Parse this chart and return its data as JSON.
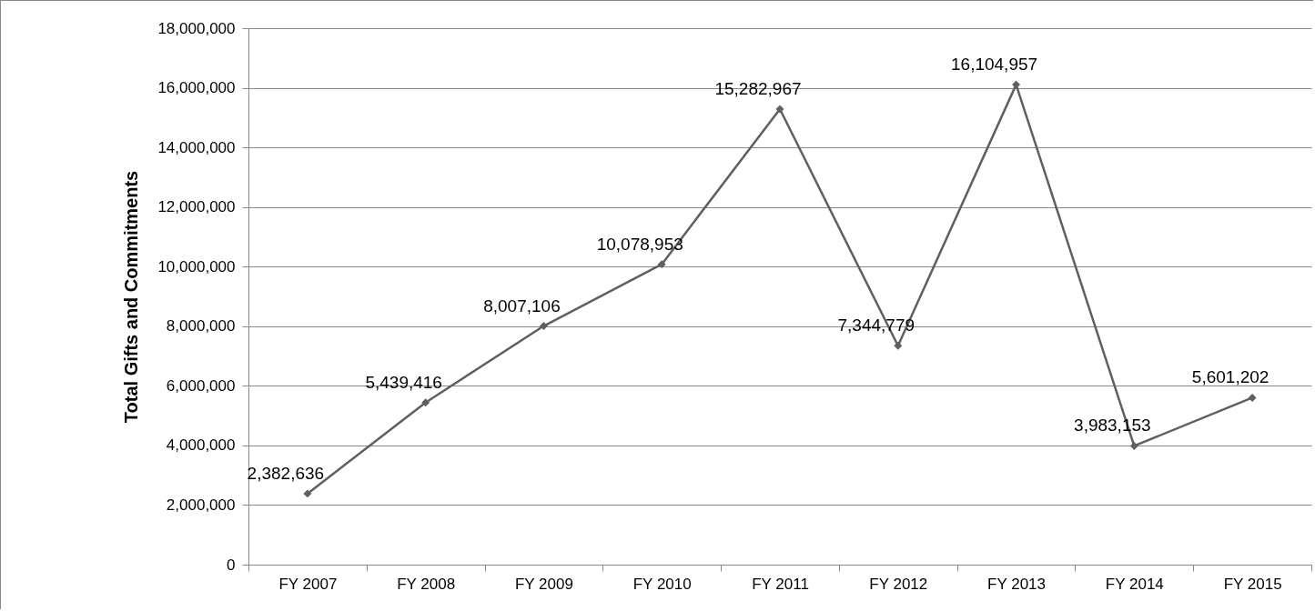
{
  "chart_data": {
    "type": "line",
    "ylabel": "Total Gifts and Commitments",
    "categories": [
      "FY 2007",
      "FY 2008",
      "FY 2009",
      "FY 2010",
      "FY 2011",
      "FY 2012",
      "FY 2013",
      "FY 2014",
      "FY 2015"
    ],
    "series": [
      {
        "color": "#5f5f5f",
        "values": [
          2382636,
          5439416,
          8007106,
          10078953,
          15282967,
          7344779,
          16104957,
          3983153,
          5601202
        ],
        "value_labels": [
          "2,382,636",
          "5,439,416",
          "8,007,106",
          "10,078,953",
          "15,282,967",
          "7,344,779",
          "16,104,957",
          "3,983,153",
          "5,601,202"
        ]
      }
    ],
    "ylim": [
      0,
      18000000
    ],
    "yticks": [
      0,
      {
        "value": 2000000,
        "label": "2,000,000"
      },
      {
        "value": 4000000,
        "label": "4,000,000"
      },
      {
        "value": 6000000,
        "label": "6,000,000"
      },
      {
        "value": 8000000,
        "label": "8,000,000"
      },
      {
        "value": 10000000,
        "label": "10,000,000"
      },
      {
        "value": 12000000,
        "label": "12,000,000"
      },
      {
        "value": 14000000,
        "label": "14,000,000"
      },
      {
        "value": 16000000,
        "label": "16,000,000"
      },
      {
        "value": 18000000,
        "label": "18,000,000"
      }
    ],
    "grid": "y",
    "marker": "diamond",
    "line_style": "solid"
  }
}
